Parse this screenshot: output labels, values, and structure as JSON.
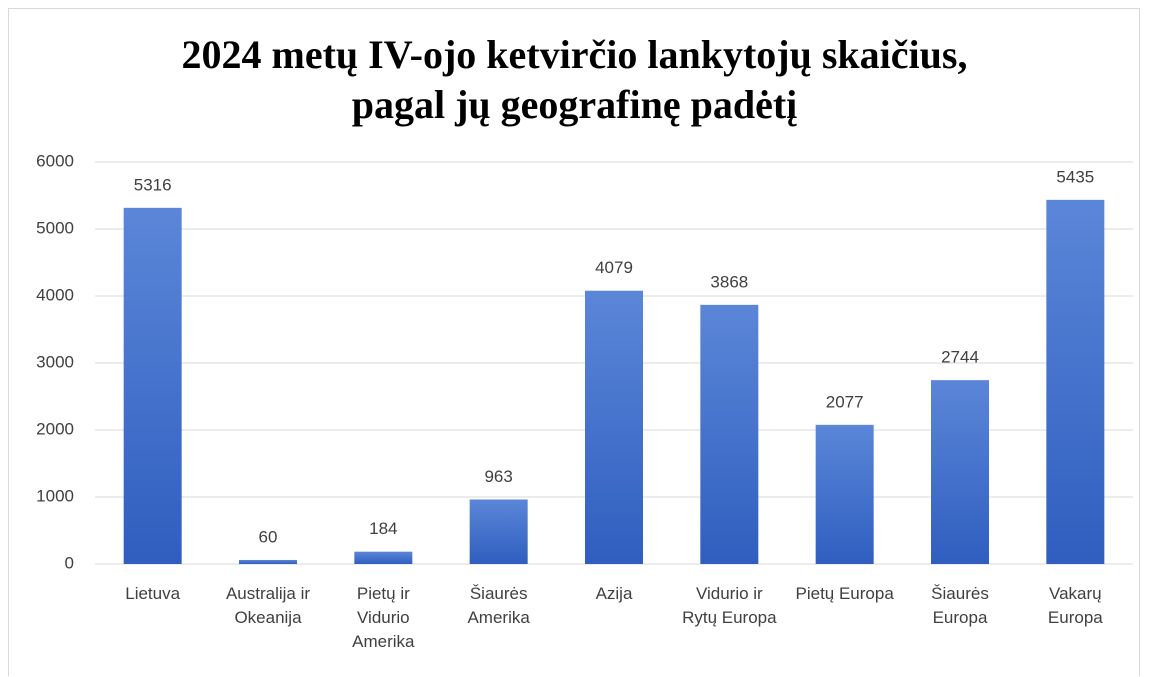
{
  "chart_data": {
    "type": "bar",
    "title": "2024 metų IV-ojo ketvirčio lankytojų skaičius,\npagal jų geografinę padėtį",
    "categories": [
      "Lietuva",
      "Australija ir Okeanija",
      "Pietų ir Vidurio Amerika",
      "Šiaurės Amerika",
      "Azija",
      "Vidurio ir Rytų Europa",
      "Pietų Europa",
      "Šiaurės Europa",
      "Vakarų Europa"
    ],
    "values": [
      5316,
      60,
      184,
      963,
      4079,
      3868,
      2077,
      2744,
      5435
    ],
    "color": "#4472c4",
    "ylim": [
      0,
      6000
    ],
    "yticks": [
      0,
      1000,
      2000,
      3000,
      4000,
      5000,
      6000
    ],
    "grid": true
  }
}
